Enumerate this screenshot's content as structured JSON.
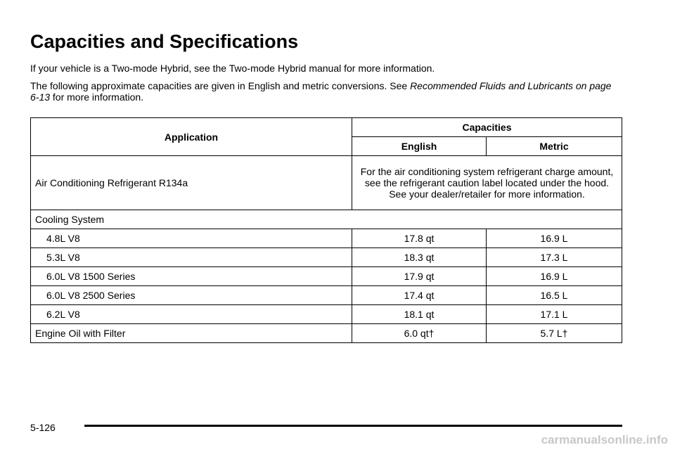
{
  "header": {
    "title": "Capacities and Specifications"
  },
  "intro": [
    "If your vehicle is a Two-mode Hybrid, see the Two-mode Hybrid manual for more information.",
    {
      "text": "The following approximate capacities are given in English and metric conversions. See",
      "reference": "Recommended Fluids and Lubricants on page 6-13",
      "tail": "for more information."
    }
  ],
  "table": {
    "columns": {
      "application": "Application",
      "capacities": "Capacities",
      "english": "English",
      "metric": "Metric"
    },
    "refrigerant": {
      "label": "Air Conditioning Refrigerant R134a",
      "note": "For the air conditioning system refrigerant charge amount, see the refrigerant caution label located under the hood. See your dealer/retailer for more information."
    },
    "cooling_system": {
      "label": "Cooling System",
      "rows": [
        [
          "4.8L V8",
          "17.8 qt",
          "16.9 L"
        ],
        [
          "5.3L V8",
          "18.3 qt",
          "17.3 L"
        ],
        [
          "6.0L V8 1500 Series",
          "17.9 qt",
          "16.9 L"
        ],
        [
          "6.0L V8 2500 Series",
          "17.4 qt",
          "16.5 L"
        ],
        [
          "6.2L V8",
          "18.1 qt",
          "17.1 L"
        ]
      ]
    },
    "engine_oil": [
      "Engine Oil with Filter",
      "6.0 qt†",
      "5.7 L†"
    ]
  },
  "footer": {
    "page": "5-126",
    "watermark": "carmanualsonline.info"
  }
}
